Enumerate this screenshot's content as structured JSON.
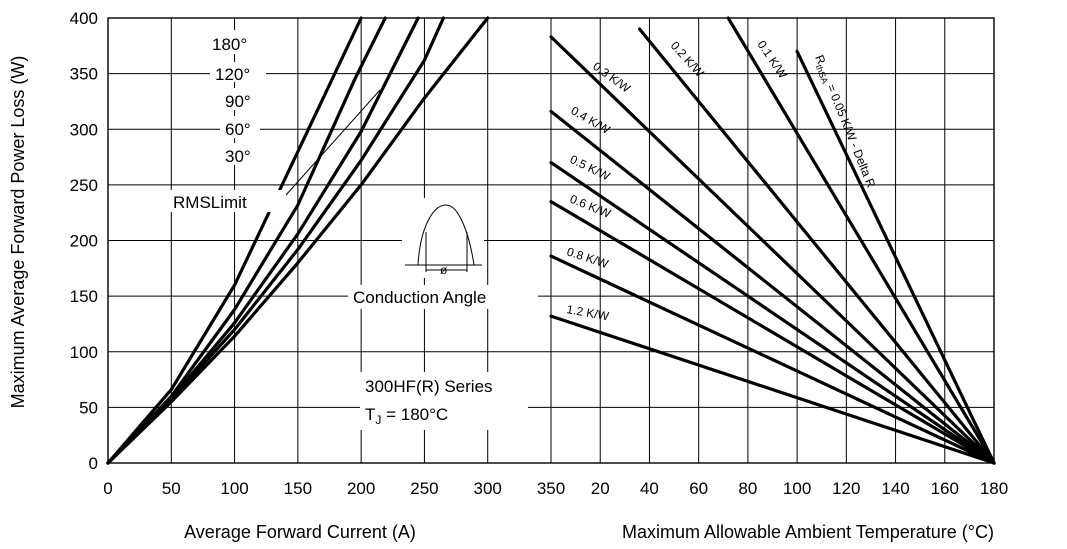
{
  "chart_data": [
    {
      "type": "line",
      "xlabel": "Average Forward Current (A)",
      "ylabel": "Maximum Average Forward Power Loss (W)",
      "xlim": [
        0,
        350
      ],
      "ylim": [
        0,
        400
      ],
      "x_ticks": [
        "0",
        "50",
        "100",
        "150",
        "200",
        "250",
        "300",
        "350"
      ],
      "y_ticks": [
        "0",
        "50",
        "100",
        "150",
        "200",
        "250",
        "300",
        "350",
        "400"
      ],
      "grid": true,
      "series": [
        {
          "name": "180°",
          "points": [
            [
              0,
              0
            ],
            [
              50,
              55
            ],
            [
              100,
              114
            ],
            [
              150,
              180
            ],
            [
              200,
              250
            ],
            [
              250,
              328
            ],
            [
              300,
              400
            ]
          ]
        },
        {
          "name": "120°",
          "points": [
            [
              0,
              0
            ],
            [
              50,
              57
            ],
            [
              100,
              120
            ],
            [
              150,
              192
            ],
            [
              200,
              272
            ],
            [
              250,
              362
            ],
            [
              265,
              400
            ]
          ]
        },
        {
          "name": "90°",
          "points": [
            [
              0,
              0
            ],
            [
              50,
              58
            ],
            [
              100,
              126
            ],
            [
              150,
              206
            ],
            [
              200,
              298
            ],
            [
              245,
              400
            ]
          ]
        },
        {
          "name": "60°",
          "points": [
            [
              0,
              0
            ],
            [
              50,
              60
            ],
            [
              100,
              138
            ],
            [
              150,
              232
            ],
            [
              195,
              345
            ],
            [
              219,
              400
            ]
          ]
        },
        {
          "name": "30°",
          "points": [
            [
              0,
              0
            ],
            [
              50,
              66
            ],
            [
              100,
              160
            ],
            [
              150,
              280
            ],
            [
              200,
              400
            ]
          ]
        }
      ],
      "series_labels": [
        "180°",
        "120°",
        "90°",
        "60°",
        "30°"
      ],
      "rms_limit_label": "RMSLimit",
      "conduction_label": "Conduction Angle",
      "phi_label": "ø",
      "series_title": "300HF(R) Series",
      "tj_main": "T",
      "tj_sub": "J",
      "tj_rest": " = 180°C"
    },
    {
      "type": "line",
      "xlabel": "Maximum Allowable Ambient Temperature (°C)",
      "xlim": [
        0,
        180
      ],
      "ylim": [
        0,
        400
      ],
      "x_ticks": [
        "20",
        "40",
        "60",
        "80",
        "100",
        "120",
        "140",
        "160",
        "180"
      ],
      "grid": true,
      "series": [
        {
          "name": "0.05 K/W - Delta R",
          "points": [
            [
              100,
              370
            ],
            [
              180,
              0
            ]
          ]
        },
        {
          "name": "0.1 K/W",
          "points": [
            [
              72,
              403
            ],
            [
              180,
              0
            ]
          ]
        },
        {
          "name": "0.2 K/W",
          "points": [
            [
              36,
              390
            ],
            [
              180,
              0
            ]
          ]
        },
        {
          "name": "0.3 K/W",
          "points": [
            [
              0,
              383
            ],
            [
              180,
              0
            ]
          ]
        },
        {
          "name": "0.4 K/W",
          "points": [
            [
              0,
              316
            ],
            [
              180,
              0
            ]
          ]
        },
        {
          "name": "0.5 K/W",
          "points": [
            [
              0,
              270
            ],
            [
              180,
              0
            ]
          ]
        },
        {
          "name": "0.6 K/W",
          "points": [
            [
              0,
              235
            ],
            [
              180,
              0
            ]
          ]
        },
        {
          "name": "0.8 K/W",
          "points": [
            [
              0,
              186
            ],
            [
              180,
              0
            ]
          ]
        },
        {
          "name": "1.2 K/W",
          "points": [
            [
              0,
              132
            ],
            [
              180,
              0
            ]
          ]
        }
      ],
      "r_labels": [
        "0.3 K/W",
        "0.2 K/W",
        "0.1 K/W",
        "0.4 K/W",
        "0.5 K/W",
        "0.6 K/W",
        "0.8 K/W",
        "1.2 K/W"
      ],
      "rth_prefix": "R",
      "rth_sub": "thSA",
      "rth_text": " = 0.05 K/W - Delta R"
    }
  ]
}
